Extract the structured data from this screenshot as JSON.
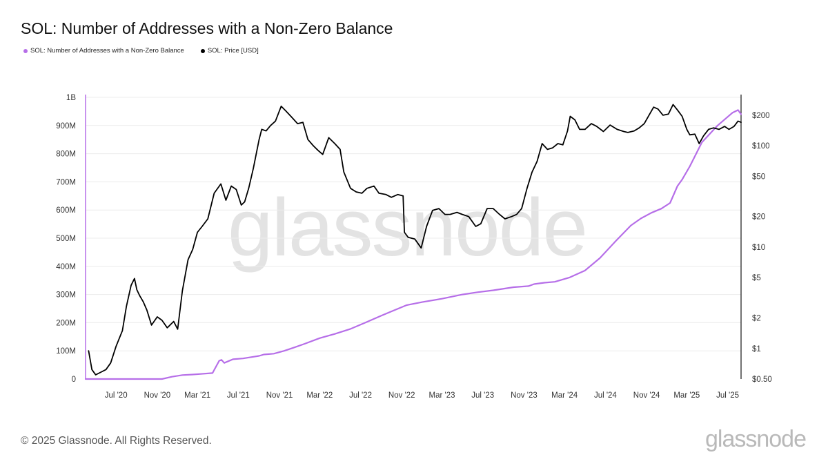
{
  "header": {
    "title": "SOL: Number of Addresses with a Non-Zero Balance"
  },
  "legend": [
    {
      "label": "SOL: Number of Addresses with a Non-Zero Balance",
      "color": "#b66ee8",
      "icon": "dot-icon"
    },
    {
      "label": "SOL: Price [USD]",
      "color": "#000000",
      "icon": "dot-icon"
    }
  ],
  "watermark": "glassnode",
  "footer": {
    "copyright": "© 2025 Glassnode. All Rights Reserved.",
    "logo": "glassnode"
  },
  "chart_data": {
    "type": "line",
    "x_ticks": [
      "Jul '20",
      "Nov '20",
      "Mar '21",
      "Jul '21",
      "Nov '21",
      "Mar '22",
      "Jul '22",
      "Nov '22",
      "Mar '23",
      "Jul '23",
      "Nov '23",
      "Mar '24",
      "Jul '24",
      "Nov '24",
      "Mar '25",
      "Jul '25"
    ],
    "xlim": [
      "2020-04-01",
      "2025-08-10"
    ],
    "y_left": {
      "ticks": [
        "0",
        "100M",
        "200M",
        "300M",
        "400M",
        "500M",
        "600M",
        "700M",
        "800M",
        "900M",
        "1B"
      ],
      "ylim": [
        0,
        1000000000
      ]
    },
    "y_right": {
      "scale": "log",
      "ticks": [
        "$0.50",
        "$1",
        "$2",
        "$5",
        "$10",
        "$20",
        "$50",
        "$100",
        "$200"
      ],
      "ylim": [
        0.5,
        300
      ]
    },
    "grid": true,
    "series": [
      {
        "name": "SOL: Number of Addresses with a Non-Zero Balance",
        "axis": "left",
        "color": "#b66ee8",
        "x": [
          "2020-04-01",
          "2020-11-15",
          "2020-12-15",
          "2021-01-15",
          "2021-02-15",
          "2021-03-10",
          "2021-04-15",
          "2021-05-05",
          "2021-05-12",
          "2021-05-20",
          "2021-06-15",
          "2021-07-15",
          "2021-08-15",
          "2021-09-01",
          "2021-09-15",
          "2021-10-15",
          "2021-11-15",
          "2021-12-15",
          "2022-01-15",
          "2022-03-01",
          "2022-04-15",
          "2022-06-01",
          "2022-07-15",
          "2022-09-01",
          "2022-10-01",
          "2022-11-15",
          "2023-01-01",
          "2023-03-01",
          "2023-05-01",
          "2023-06-15",
          "2023-08-01",
          "2023-10-01",
          "2023-11-15",
          "2023-12-01",
          "2024-01-01",
          "2024-02-01",
          "2024-03-15",
          "2024-05-01",
          "2024-06-15",
          "2024-08-01",
          "2024-09-15",
          "2024-10-15",
          "2024-11-15",
          "2024-12-15",
          "2025-01-10",
          "2025-02-01",
          "2025-02-15",
          "2025-03-10",
          "2025-04-15",
          "2025-06-01",
          "2025-07-15",
          "2025-08-01",
          "2025-08-10"
        ],
        "values": [
          0,
          0,
          8000000,
          14000000,
          16000000,
          18000000,
          21000000,
          65000000,
          68000000,
          57000000,
          70000000,
          73000000,
          79000000,
          82000000,
          87000000,
          90000000,
          100000000,
          112000000,
          125000000,
          145000000,
          160000000,
          178000000,
          200000000,
          225000000,
          240000000,
          262000000,
          273000000,
          285000000,
          300000000,
          308000000,
          315000000,
          326000000,
          330000000,
          337000000,
          342000000,
          345000000,
          360000000,
          385000000,
          430000000,
          490000000,
          545000000,
          570000000,
          590000000,
          605000000,
          625000000,
          685000000,
          708000000,
          755000000,
          840000000,
          900000000,
          945000000,
          955000000,
          940000000
        ]
      },
      {
        "name": "SOL: Price [USD]",
        "axis": "right",
        "color": "#000000",
        "x": [
          "2020-04-10",
          "2020-04-20",
          "2020-05-01",
          "2020-05-15",
          "2020-06-01",
          "2020-06-15",
          "2020-07-01",
          "2020-07-20",
          "2020-08-01",
          "2020-08-15",
          "2020-08-25",
          "2020-09-01",
          "2020-09-10",
          "2020-09-20",
          "2020-10-01",
          "2020-10-15",
          "2020-11-01",
          "2020-11-15",
          "2020-12-01",
          "2020-12-20",
          "2021-01-01",
          "2021-01-15",
          "2021-02-01",
          "2021-02-15",
          "2021-03-01",
          "2021-03-15",
          "2021-04-01",
          "2021-04-20",
          "2021-05-10",
          "2021-05-25",
          "2021-06-10",
          "2021-06-25",
          "2021-07-10",
          "2021-07-20",
          "2021-08-01",
          "2021-08-15",
          "2021-09-01",
          "2021-09-09",
          "2021-09-22",
          "2021-10-05",
          "2021-10-20",
          "2021-11-06",
          "2021-11-20",
          "2021-12-05",
          "2021-12-25",
          "2022-01-10",
          "2022-01-25",
          "2022-02-10",
          "2022-02-24",
          "2022-03-10",
          "2022-03-28",
          "2022-04-15",
          "2022-05-01",
          "2022-05-12",
          "2022-06-01",
          "2022-06-18",
          "2022-07-05",
          "2022-07-20",
          "2022-08-10",
          "2022-08-25",
          "2022-09-15",
          "2022-10-01",
          "2022-10-20",
          "2022-11-05",
          "2022-11-09",
          "2022-11-20",
          "2022-12-10",
          "2022-12-29",
          "2023-01-14",
          "2023-02-01",
          "2023-02-20",
          "2023-03-10",
          "2023-03-25",
          "2023-04-15",
          "2023-05-01",
          "2023-05-20",
          "2023-06-10",
          "2023-06-25",
          "2023-07-14",
          "2023-08-01",
          "2023-08-20",
          "2023-09-05",
          "2023-09-25",
          "2023-10-10",
          "2023-10-25",
          "2023-11-10",
          "2023-11-25",
          "2023-12-10",
          "2023-12-25",
          "2024-01-10",
          "2024-01-25",
          "2024-02-10",
          "2024-02-25",
          "2024-03-10",
          "2024-03-18",
          "2024-04-01",
          "2024-04-15",
          "2024-05-01",
          "2024-05-20",
          "2024-06-05",
          "2024-06-25",
          "2024-07-15",
          "2024-08-05",
          "2024-08-25",
          "2024-09-06",
          "2024-09-25",
          "2024-10-10",
          "2024-10-25",
          "2024-11-10",
          "2024-11-22",
          "2024-12-05",
          "2024-12-20",
          "2025-01-05",
          "2025-01-19",
          "2025-02-01",
          "2025-02-15",
          "2025-03-01",
          "2025-03-10",
          "2025-03-25",
          "2025-04-07",
          "2025-04-20",
          "2025-05-05",
          "2025-05-20",
          "2025-06-05",
          "2025-06-22",
          "2025-07-05",
          "2025-07-20",
          "2025-08-01",
          "2025-08-10"
        ],
        "values": [
          0.95,
          0.62,
          0.55,
          0.58,
          0.62,
          0.72,
          1.05,
          1.5,
          2.6,
          4.2,
          4.9,
          3.8,
          3.3,
          2.9,
          2.4,
          1.7,
          2.05,
          1.9,
          1.6,
          1.85,
          1.55,
          3.7,
          7.5,
          9.5,
          14,
          16,
          19,
          34,
          42,
          29,
          40,
          37,
          26,
          28,
          38,
          60,
          115,
          145,
          140,
          158,
          175,
          245,
          220,
          195,
          165,
          170,
          115,
          100,
          90,
          82,
          120,
          105,
          92,
          55,
          38,
          35,
          34,
          38,
          40,
          34,
          33,
          31,
          33,
          32,
          14,
          12.5,
          12,
          9.8,
          16,
          23,
          24,
          21,
          21,
          22,
          21,
          20,
          16,
          17,
          24,
          24,
          21,
          19,
          20,
          21,
          24,
          38,
          55,
          70,
          105,
          92,
          95,
          105,
          102,
          140,
          195,
          180,
          145,
          145,
          165,
          155,
          138,
          160,
          145,
          138,
          135,
          140,
          150,
          165,
          205,
          240,
          230,
          200,
          205,
          255,
          225,
          195,
          145,
          128,
          130,
          105,
          125,
          145,
          150,
          145,
          155,
          145,
          155,
          175,
          170
        ]
      }
    ]
  }
}
